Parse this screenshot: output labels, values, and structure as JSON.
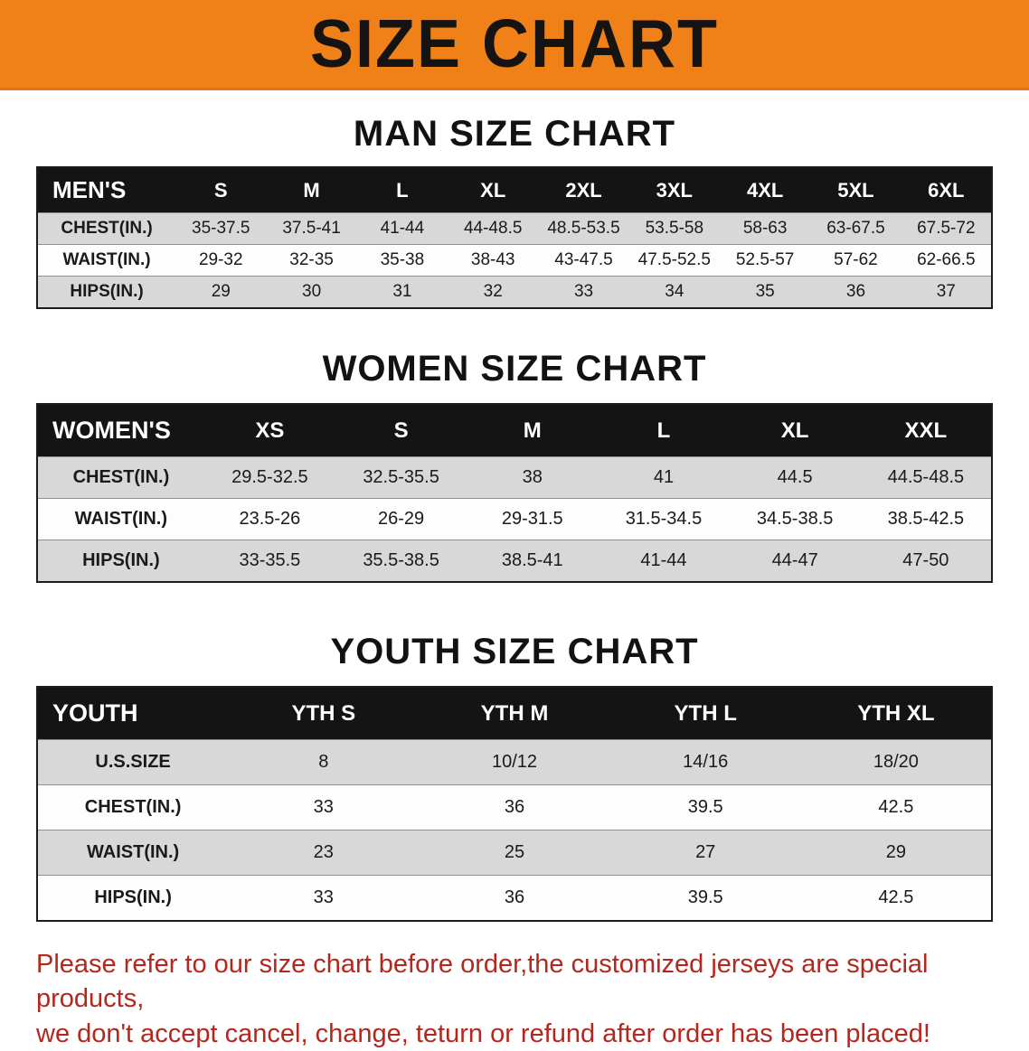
{
  "banner": {
    "title": "SIZE CHART"
  },
  "sections": [
    {
      "heading": "MAN SIZE CHART",
      "table": {
        "header": [
          "MEN'S",
          "S",
          "M",
          "L",
          "XL",
          "2XL",
          "3XL",
          "4XL",
          "5XL",
          "6XL"
        ],
        "rows": [
          [
            "CHEST(IN.)",
            "35-37.5",
            "37.5-41",
            "41-44",
            "44-48.5",
            "48.5-53.5",
            "53.5-58",
            "58-63",
            "63-67.5",
            "67.5-72"
          ],
          [
            "WAIST(IN.)",
            "29-32",
            "32-35",
            "35-38",
            "38-43",
            "43-47.5",
            "47.5-52.5",
            "52.5-57",
            "57-62",
            "62-66.5"
          ],
          [
            "HIPS(IN.)",
            "29",
            "30",
            "31",
            "32",
            "33",
            "34",
            "35",
            "36",
            "37"
          ]
        ]
      }
    },
    {
      "heading": "WOMEN SIZE CHART",
      "table": {
        "header": [
          "WOMEN'S",
          "XS",
          "S",
          "M",
          "L",
          "XL",
          "XXL"
        ],
        "rows": [
          [
            "CHEST(IN.)",
            "29.5-32.5",
            "32.5-35.5",
            "38",
            "41",
            "44.5",
            "44.5-48.5"
          ],
          [
            "WAIST(IN.)",
            "23.5-26",
            "26-29",
            "29-31.5",
            "31.5-34.5",
            "34.5-38.5",
            "38.5-42.5"
          ],
          [
            "HIPS(IN.)",
            "33-35.5",
            "35.5-38.5",
            "38.5-41",
            "41-44",
            "44-47",
            "47-50"
          ]
        ]
      }
    },
    {
      "heading": "YOUTH SIZE CHART",
      "table": {
        "header": [
          "YOUTH",
          "YTH S",
          "YTH M",
          "YTH L",
          "YTH XL"
        ],
        "rows": [
          [
            "U.S.SIZE",
            "8",
            "10/12",
            "14/16",
            "18/20"
          ],
          [
            "CHEST(IN.)",
            "33",
            "36",
            "39.5",
            "42.5"
          ],
          [
            "WAIST(IN.)",
            "23",
            "25",
            "27",
            "29"
          ],
          [
            "HIPS(IN.)",
            "33",
            "36",
            "39.5",
            "42.5"
          ]
        ]
      }
    }
  ],
  "notice": {
    "line1": "Please refer to our size chart before order,the customized jerseys are special products,",
    "line2": "we don't accept cancel, change, teturn or refund after order has been placed!"
  },
  "colors": {
    "banner_bg": "#F08119",
    "table_header_bg": "#141414",
    "row_alt_gray": "#D8D8D8",
    "notice_red": "#B5271D"
  }
}
